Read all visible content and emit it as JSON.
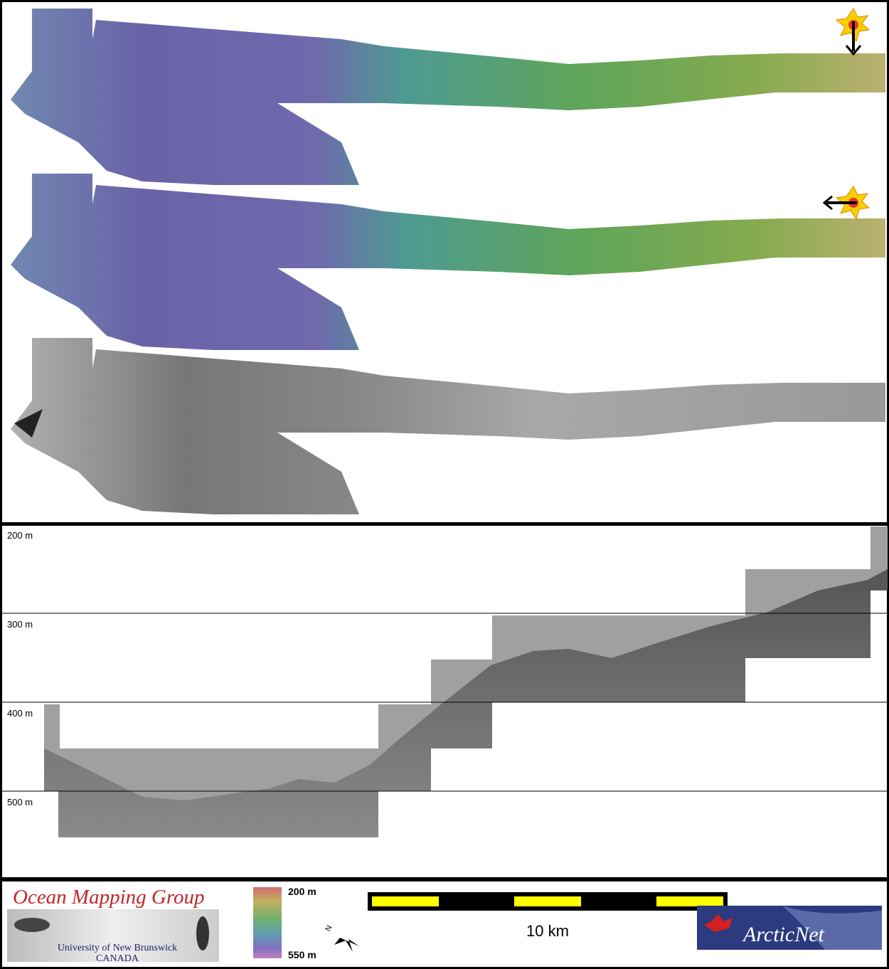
{
  "profile": {
    "depth_labels": [
      "200 m",
      "300 m",
      "400 m",
      "500 m"
    ]
  },
  "footer": {
    "logo": {
      "title": "Ocean Mapping Group",
      "university": "University of New Brunswick",
      "country": "CANADA"
    },
    "colorbar": {
      "top": "200 m",
      "bottom": "550 m"
    },
    "compass": "N",
    "scale": "10 km",
    "partner": "ArcticNet"
  }
}
